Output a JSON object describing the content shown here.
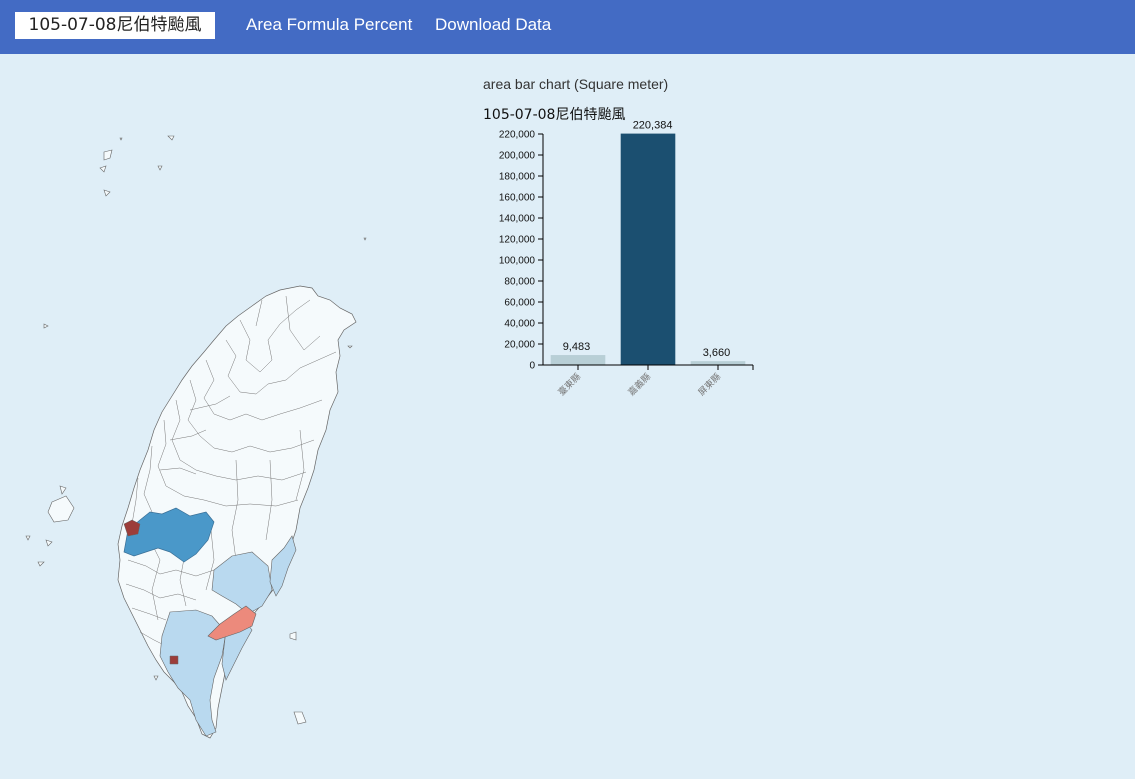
{
  "navbar": {
    "event_selected": "105-07-08尼伯特颱風",
    "area_formula_link": "Area Formula Percent",
    "download_link": "Download Data",
    "background": "#436bc4"
  },
  "chart_panel": {
    "heading": "area bar chart (Square meter)"
  },
  "chart_data": {
    "type": "bar",
    "title": "105-07-08尼伯特颱風",
    "categories": [
      "臺東縣",
      "嘉義縣",
      "屏東縣"
    ],
    "values": [
      9483,
      220384,
      3660
    ],
    "value_labels": [
      "9,483",
      "220,384",
      "3,660"
    ],
    "bar_colors": [
      "#b8cfd6",
      "#1b4f70",
      "#b8cfd6"
    ],
    "ylim": [
      0,
      220000
    ],
    "yticks": [
      0,
      20000,
      40000,
      60000,
      80000,
      100000,
      120000,
      140000,
      160000,
      180000,
      200000,
      220000
    ],
    "ytick_labels": [
      "0",
      "20,000",
      "40,000",
      "60,000",
      "80,000",
      "100,000",
      "120,000",
      "140,000",
      "160,000",
      "180,000",
      "200,000",
      "220,000"
    ],
    "xlabel": "",
    "ylabel": "",
    "grid": false
  },
  "map": {
    "colors": {
      "background": "#f5fafc",
      "border": "#666666",
      "dark_blue": "#4a98c9",
      "light_blue": "#b9d9ef",
      "salmon": "#ec8a7c",
      "dark_red": "#9c3d3a"
    }
  }
}
